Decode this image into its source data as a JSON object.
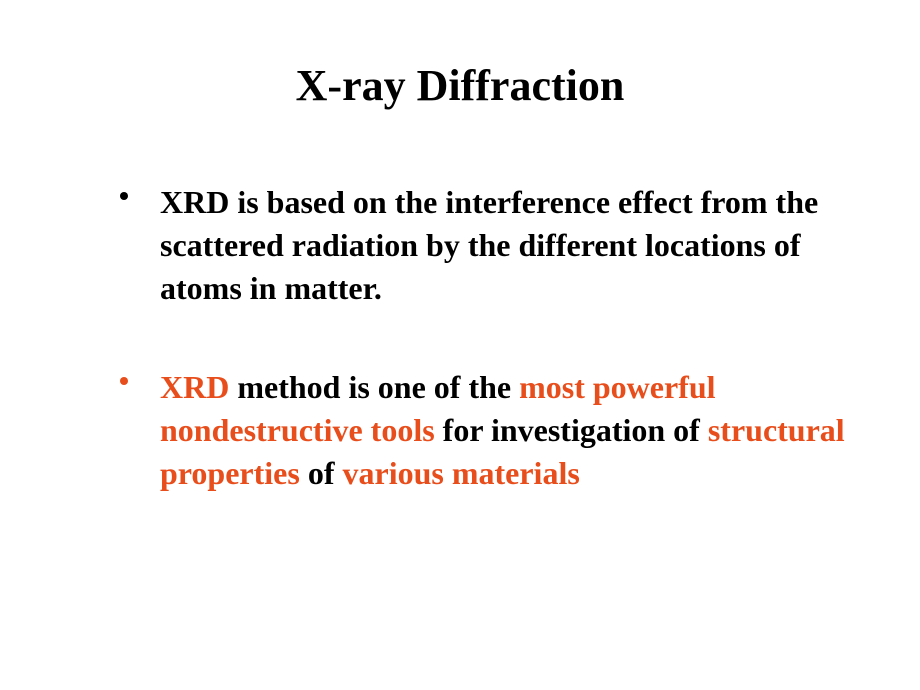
{
  "title": {
    "text": "X-ray Diffraction",
    "color": "#000000",
    "fontsize": 44
  },
  "body_fontsize": 32,
  "bullets": [
    {
      "dot_color": "#000000",
      "segments": [
        {
          "text": "XRD is based on the interference effect from the scattered radiation by the different locations of atoms in matter.",
          "color": "#000000"
        }
      ]
    },
    {
      "dot_color": "#e84e1c",
      "segments": [
        {
          "text": "XRD",
          "color": "#e84e1c"
        },
        {
          "text": " method is one of the ",
          "color": "#000000"
        },
        {
          "text": "most powerful nondestructive tools",
          "color": "#e84e1c"
        },
        {
          "text": " for investigation of ",
          "color": "#000000"
        },
        {
          "text": "structural properties",
          "color": "#e84e1c"
        },
        {
          "text": " of ",
          "color": "#000000"
        },
        {
          "text": "various materials",
          "color": "#e84e1c"
        }
      ]
    }
  ],
  "background_color": "#ffffff"
}
